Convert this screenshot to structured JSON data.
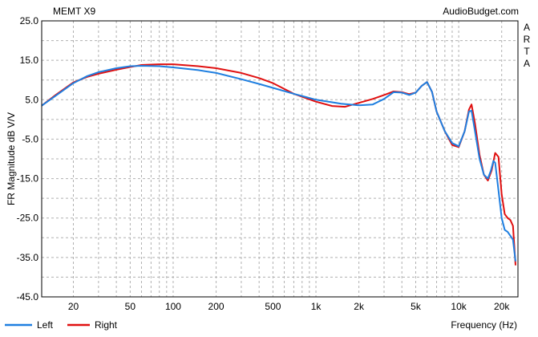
{
  "header": {
    "title": "MEMT X9",
    "site": "AudioBudget.com",
    "watermark": "ARTA"
  },
  "chart_data": {
    "type": "line",
    "title": "MEMT X9",
    "ylabel": "FR Magnitude dB V/V",
    "xlabel": "Frequency (Hz)",
    "x_scale": "log",
    "xlim": [
      12,
      26000
    ],
    "ylim": [
      -45,
      25
    ],
    "grid": true,
    "legend": "bottom-left",
    "x_ticks": [
      {
        "value": 20,
        "label": "20"
      },
      {
        "value": 50,
        "label": "50"
      },
      {
        "value": 100,
        "label": "100"
      },
      {
        "value": 200,
        "label": "200"
      },
      {
        "value": 500,
        "label": "500"
      },
      {
        "value": 1000,
        "label": "1k"
      },
      {
        "value": 2000,
        "label": "2k"
      },
      {
        "value": 5000,
        "label": "5k"
      },
      {
        "value": 10000,
        "label": "10k"
      },
      {
        "value": 20000,
        "label": "20k"
      }
    ],
    "y_ticks": [
      {
        "value": 25,
        "label": "25.0"
      },
      {
        "value": 15,
        "label": "15.0"
      },
      {
        "value": 5,
        "label": "5.0"
      },
      {
        "value": -5,
        "label": "-5.0"
      },
      {
        "value": -15,
        "label": "-15.0"
      },
      {
        "value": -25,
        "label": "-25.0"
      },
      {
        "value": -35,
        "label": "-35.0"
      },
      {
        "value": -45,
        "label": "-45.0"
      }
    ],
    "series": [
      {
        "name": "Left",
        "color": "#1f7fe0",
        "points": [
          [
            12,
            3.5
          ],
          [
            15,
            6
          ],
          [
            20,
            9.2
          ],
          [
            25,
            11
          ],
          [
            30,
            12
          ],
          [
            40,
            13
          ],
          [
            50,
            13.5
          ],
          [
            60,
            13.6
          ],
          [
            80,
            13.5
          ],
          [
            100,
            13.2
          ],
          [
            150,
            12.5
          ],
          [
            200,
            11.8
          ],
          [
            300,
            10.2
          ],
          [
            400,
            9
          ],
          [
            500,
            8
          ],
          [
            700,
            6.5
          ],
          [
            1000,
            5
          ],
          [
            1500,
            4
          ],
          [
            2000,
            3.6
          ],
          [
            2500,
            3.8
          ],
          [
            3000,
            5.2
          ],
          [
            3500,
            6.9
          ],
          [
            4000,
            6.8
          ],
          [
            4500,
            6.2
          ],
          [
            5000,
            6.8
          ],
          [
            5500,
            8.5
          ],
          [
            6000,
            9.5
          ],
          [
            6500,
            7
          ],
          [
            7000,
            2
          ],
          [
            8000,
            -3
          ],
          [
            9000,
            -6
          ],
          [
            10000,
            -6.8
          ],
          [
            11000,
            -3
          ],
          [
            11800,
            2
          ],
          [
            12300,
            2.2
          ],
          [
            13000,
            -3
          ],
          [
            14000,
            -10
          ],
          [
            15000,
            -14
          ],
          [
            16000,
            -15
          ],
          [
            16800,
            -13
          ],
          [
            17500,
            -10.5
          ],
          [
            18000,
            -11
          ],
          [
            19000,
            -18
          ],
          [
            20000,
            -25
          ],
          [
            21000,
            -28
          ],
          [
            22000,
            -28.5
          ],
          [
            23000,
            -29.5
          ],
          [
            24000,
            -30.5
          ],
          [
            25000,
            -36
          ]
        ]
      },
      {
        "name": "Right",
        "color": "#e01010",
        "points": [
          [
            12,
            3.5
          ],
          [
            15,
            6.2
          ],
          [
            20,
            9.4
          ],
          [
            25,
            10.8
          ],
          [
            30,
            11.6
          ],
          [
            40,
            12.6
          ],
          [
            50,
            13.3
          ],
          [
            60,
            13.8
          ],
          [
            80,
            14
          ],
          [
            100,
            14
          ],
          [
            150,
            13.5
          ],
          [
            200,
            13
          ],
          [
            300,
            11.8
          ],
          [
            400,
            10.5
          ],
          [
            500,
            9.2
          ],
          [
            700,
            6.5
          ],
          [
            1000,
            4.5
          ],
          [
            1300,
            3.4
          ],
          [
            1600,
            3.2
          ],
          [
            2000,
            4.2
          ],
          [
            2500,
            5.2
          ],
          [
            3000,
            6.2
          ],
          [
            3500,
            7.1
          ],
          [
            4000,
            6.9
          ],
          [
            4500,
            6.4
          ],
          [
            5000,
            6.8
          ],
          [
            5500,
            8.5
          ],
          [
            6000,
            9.5
          ],
          [
            6500,
            7
          ],
          [
            7000,
            2
          ],
          [
            8000,
            -3
          ],
          [
            9000,
            -6.5
          ],
          [
            10000,
            -7
          ],
          [
            11000,
            -3
          ],
          [
            11800,
            2.5
          ],
          [
            12300,
            3.8
          ],
          [
            13000,
            -1
          ],
          [
            14000,
            -9
          ],
          [
            15000,
            -14
          ],
          [
            16000,
            -15.5
          ],
          [
            17000,
            -13
          ],
          [
            18000,
            -8.5
          ],
          [
            19000,
            -9.5
          ],
          [
            20000,
            -19
          ],
          [
            21000,
            -24
          ],
          [
            22000,
            -25
          ],
          [
            23000,
            -25.5
          ],
          [
            24000,
            -27
          ],
          [
            25000,
            -37
          ]
        ]
      }
    ]
  }
}
